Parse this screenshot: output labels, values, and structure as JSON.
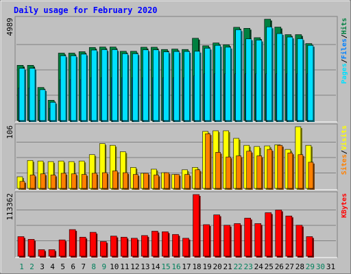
{
  "colors": {
    "background": "#C0C0C0",
    "title": "#0000FF",
    "hits": "#008040",
    "files": "#0080FF",
    "pages": "#00E0FF",
    "visits": "#FFFF00",
    "sites": "#FF8000",
    "kbytes": "#FF0000",
    "weekend_day": "#00805C",
    "weekday": "#000000"
  },
  "chart_data": {
    "title": "Daily usage for February 2020",
    "type": "bar",
    "x": [
      "1",
      "2",
      "3",
      "4",
      "5",
      "6",
      "7",
      "8",
      "9",
      "10",
      "11",
      "12",
      "13",
      "14",
      "15",
      "16",
      "17",
      "18",
      "19",
      "20",
      "21",
      "22",
      "23",
      "24",
      "25",
      "26",
      "27",
      "28",
      "29",
      "30",
      "31"
    ],
    "weekend_days": [
      "1",
      "2",
      "8",
      "9",
      "15",
      "16",
      "22",
      "23",
      "29",
      "30"
    ],
    "panels": [
      {
        "name": "hits-files-pages",
        "axis_max_label": "4989",
        "ymax": 4989,
        "legend": [
          {
            "name": "Pages",
            "color": "#00E0FF"
          },
          {
            "name": "/",
            "color": "#000000"
          },
          {
            "name": "Files",
            "color": "#0080FF"
          },
          {
            "name": "/",
            "color": "#000000"
          },
          {
            "name": "Hits",
            "color": "#008040"
          }
        ],
        "series": [
          {
            "name": "Hits",
            "values": [
              2720,
              2720,
              1630,
              1000,
              3320,
              3320,
              3390,
              3600,
              3620,
              3620,
              3410,
              3410,
              3610,
              3610,
              3500,
              3520,
              3500,
              4050,
              3680,
              3820,
              3730,
              4590,
              4540,
              4080,
              4989,
              4600,
              4230,
              4230,
              3790,
              null,
              null
            ]
          },
          {
            "name": "Files",
            "values": [
              1600,
              1600,
              1000,
              600,
              2000,
              2000,
              2000,
              2100,
              2100,
              2100,
              2100,
              2100,
              2100,
              2100,
              2100,
              2100,
              2100,
              2200,
              2300,
              2300,
              2300,
              2300,
              2300,
              2300,
              2300,
              2300,
              2300,
              2300,
              2300,
              null,
              null
            ]
          },
          {
            "name": "Pages",
            "values": [
              2570,
              2570,
              1520,
              900,
              3190,
              3190,
              3270,
              3470,
              3490,
              3490,
              3290,
              3290,
              3480,
              3480,
              3380,
              3400,
              3400,
              3410,
              3560,
              3700,
              3610,
              4470,
              4020,
              3960,
              4610,
              4280,
              4110,
              4030,
              3700,
              null,
              null
            ]
          }
        ]
      },
      {
        "name": "visits-sites",
        "axis_max_label": "106",
        "ymax": 106,
        "legend": [
          {
            "name": "Sites",
            "color": "#FF8000"
          },
          {
            "name": "/",
            "color": "#000000"
          },
          {
            "name": "Visits",
            "color": "#FFFF00"
          }
        ],
        "series": [
          {
            "name": "Visits",
            "values": [
              20,
              48,
              47,
              46,
              47,
              46,
              47,
              58,
              77,
              74,
              63,
              36,
              26,
              33,
              27,
              24,
              32,
              36,
              98,
              99,
              99,
              86,
              74,
              72,
              73,
              75,
              67,
              106,
              74,
              null,
              null
            ]
          },
          {
            "name": "Sites",
            "values": [
              12,
              23,
              25,
              23,
              26,
              25,
              24,
              26,
              27,
              30,
              27,
              24,
              26,
              23,
              27,
              24,
              24,
              32,
              94,
              62,
              54,
              56,
              64,
              56,
              67,
              74,
              61,
              58,
              45,
              null,
              null
            ]
          }
        ]
      },
      {
        "name": "kbytes",
        "axis_max_label": "113362",
        "ymax": 113362,
        "legend": [
          {
            "name": "KBytes",
            "color": "#FF0000"
          }
        ],
        "series": [
          {
            "name": "KBytes",
            "values": [
              36000,
              31000,
              12000,
              12000,
              30000,
              49000,
              35000,
              44000,
              27000,
              37000,
              35000,
              33000,
              38000,
              46000,
              45000,
              40000,
              33000,
              113362,
              58000,
              76000,
              57000,
              60000,
              70000,
              60000,
              80000,
              85000,
              74000,
              57000,
              36000,
              null,
              null
            ]
          }
        ]
      }
    ]
  }
}
